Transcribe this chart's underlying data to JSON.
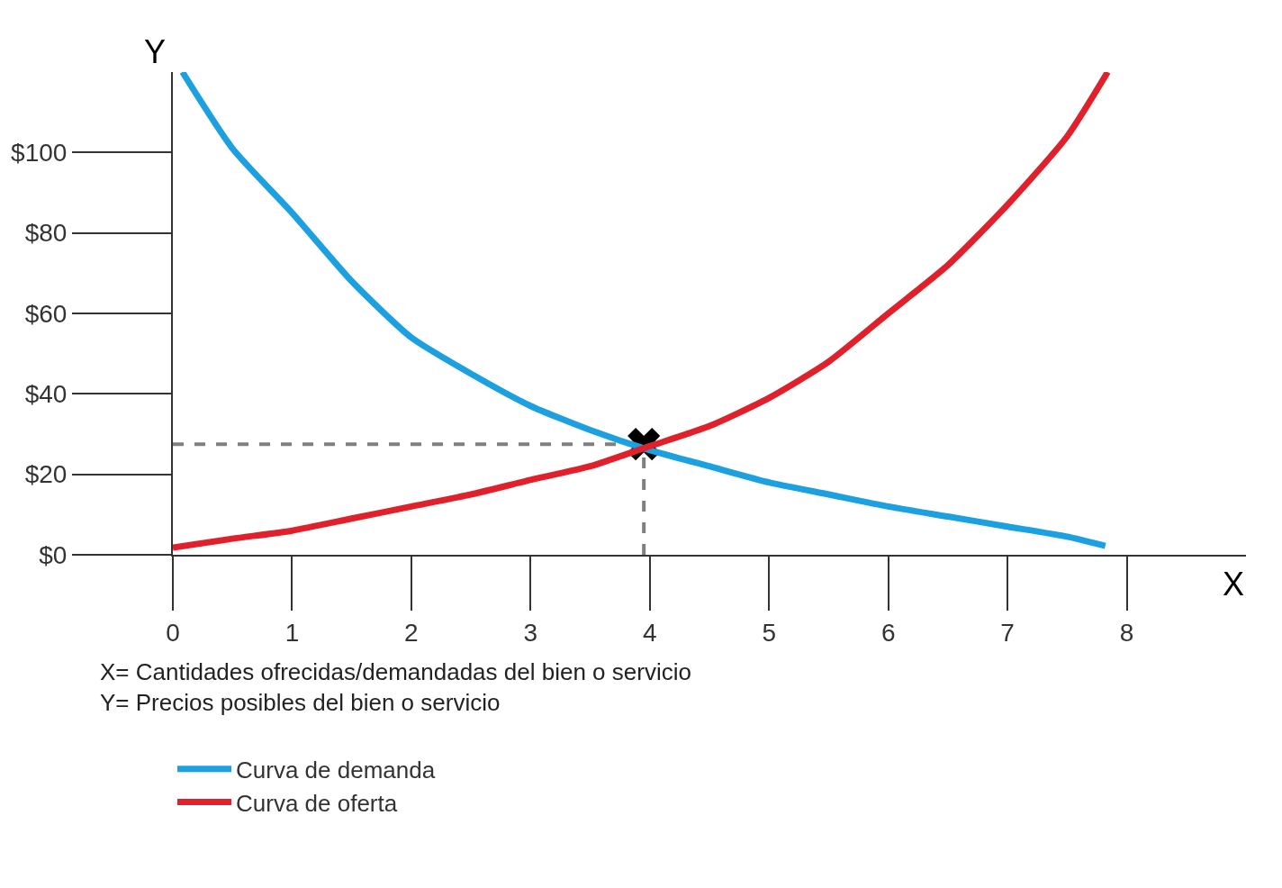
{
  "chart_data": {
    "type": "line",
    "xlabel": "X",
    "ylabel": "Y",
    "xlim": [
      0,
      9
    ],
    "ylim": [
      0,
      120
    ],
    "xticks": [
      0,
      1,
      2,
      3,
      4,
      5,
      6,
      7,
      8
    ],
    "yticks": [
      {
        "value": 0,
        "label": "$0"
      },
      {
        "value": 20,
        "label": "$20"
      },
      {
        "value": 40,
        "label": "$40"
      },
      {
        "value": 60,
        "label": "$60"
      },
      {
        "value": 80,
        "label": "$80"
      },
      {
        "value": 100,
        "label": "$100"
      }
    ],
    "series": [
      {
        "name": "Curva de demanda",
        "color": "#1ca0e0",
        "x": [
          0.08,
          0.5,
          1,
          1.5,
          2,
          2.5,
          3,
          3.5,
          4,
          4.5,
          5,
          5.5,
          6,
          6.5,
          7,
          7.5,
          7.82
        ],
        "values": [
          120,
          101,
          85,
          68,
          54,
          45,
          37,
          31,
          26,
          22,
          18,
          15,
          12,
          9.5,
          7,
          4.5,
          2.2
        ]
      },
      {
        "name": "Curva de oferta",
        "color": "#e0202a",
        "x": [
          0,
          0.5,
          1,
          1.5,
          2,
          2.5,
          3,
          3.5,
          4,
          4.5,
          5,
          5.5,
          6,
          6.5,
          7,
          7.5,
          7.84
        ],
        "values": [
          1.8,
          4,
          6,
          9,
          12,
          15,
          18.6,
          22,
          27,
          32,
          39,
          48,
          60,
          72,
          87,
          104,
          120
        ]
      },
      {
        "type": "scatter",
        "marker": "cross",
        "color": "#000000",
        "x": [
          3.95
        ],
        "values": [
          27.5
        ]
      }
    ],
    "ref_lines": [
      {
        "axis": "y",
        "value": 27.5,
        "color": "#808080",
        "line_style": "dashed"
      },
      {
        "axis": "x",
        "value": 3.95,
        "color": "#808080",
        "line_style": "dashed"
      }
    ],
    "annotations": [
      "X= Cantidades ofrecidas/demandadas del bien o servicio",
      "Y= Precios posibles del bien o servicio"
    ],
    "legend": "bottom left",
    "grid": false,
    "marker": "none",
    "line_style": "solid"
  }
}
